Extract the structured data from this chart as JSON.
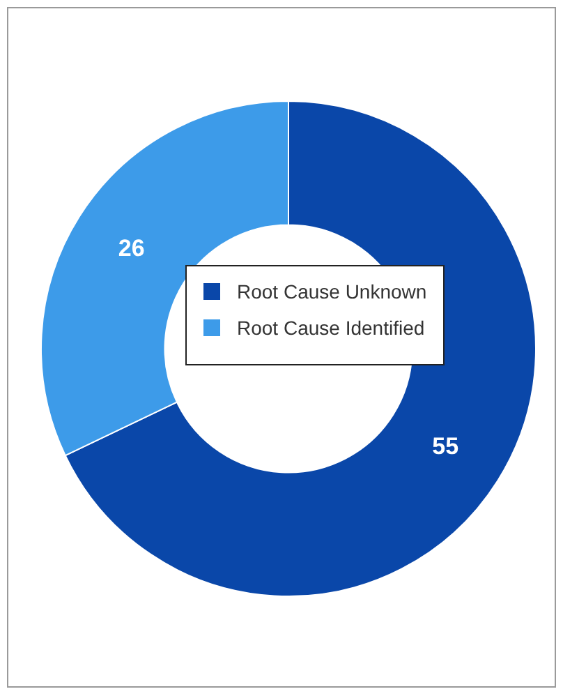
{
  "chart_data": {
    "type": "donut",
    "categories": [
      "Root Cause Unknown",
      "Root Cause Identified"
    ],
    "values": [
      55,
      26
    ],
    "colors": [
      "#0a47a9",
      "#3d9be9"
    ],
    "data_labels": true,
    "legend": "center"
  }
}
